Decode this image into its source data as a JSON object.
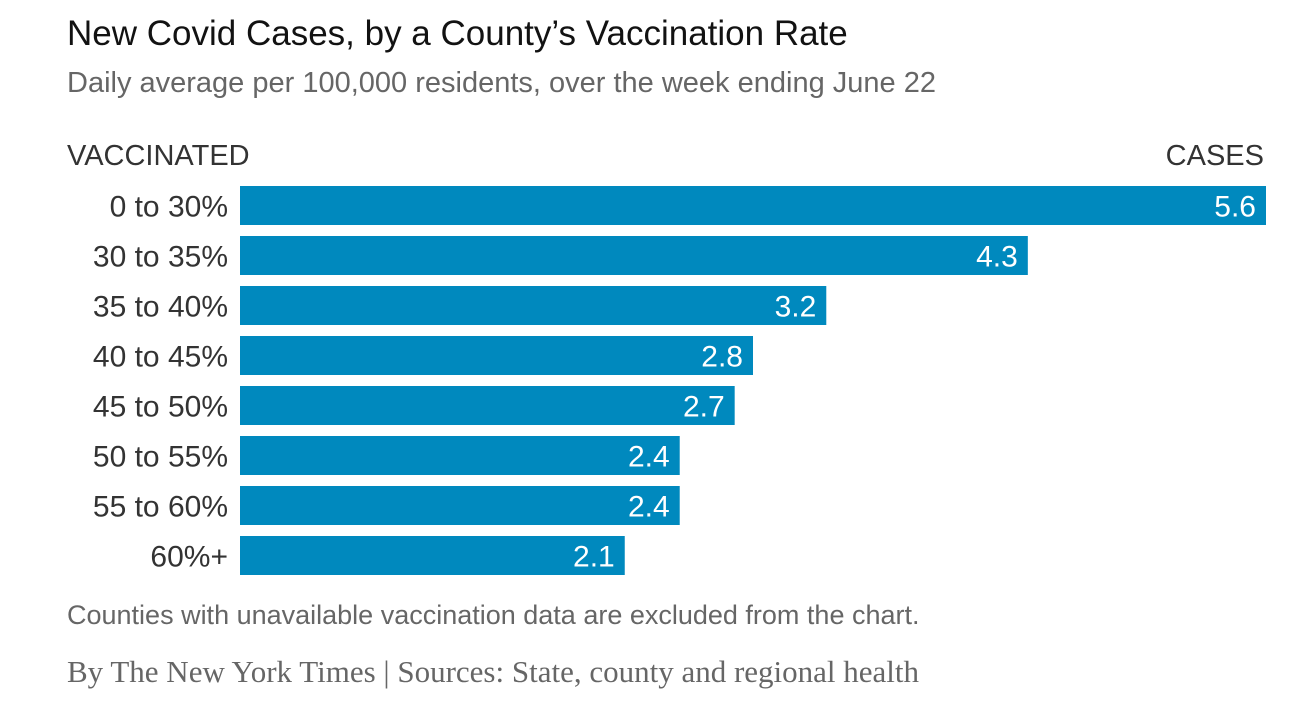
{
  "header": {
    "title": "New Covid Cases, by a County’s Vaccination Rate",
    "subtitle": "Daily average per 100,000 residents, over the week ending June 22"
  },
  "columns": {
    "left": "VACCINATED",
    "right": "CASES"
  },
  "footer": {
    "note": "Counties with unavailable vaccination data are excluded from the chart.",
    "credit": "By The New York Times | Sources: State, county and regional health"
  },
  "colors": {
    "bar": "#0089be",
    "bar_label": "#ffffff",
    "category_label": "#333333"
  },
  "chart_data": {
    "type": "bar",
    "orientation": "horizontal",
    "title": "New Covid Cases, by a County’s Vaccination Rate",
    "subtitle": "Daily average per 100,000 residents, over the week ending June 22",
    "xlabel": "CASES",
    "ylabel": "VACCINATED",
    "categories": [
      "0 to 30%",
      "30 to 35%",
      "35 to 40%",
      "40 to 45%",
      "45 to 50%",
      "50 to 55%",
      "55 to 60%",
      "60%+"
    ],
    "values": [
      5.6,
      4.3,
      3.2,
      2.8,
      2.7,
      2.4,
      2.4,
      2.1
    ],
    "value_labels": [
      "5.6",
      "4.3",
      "3.2",
      "2.8",
      "2.7",
      "2.4",
      "2.4",
      "2.1"
    ],
    "xlim": [
      0,
      5.6
    ],
    "grid": false,
    "legend": "none"
  }
}
